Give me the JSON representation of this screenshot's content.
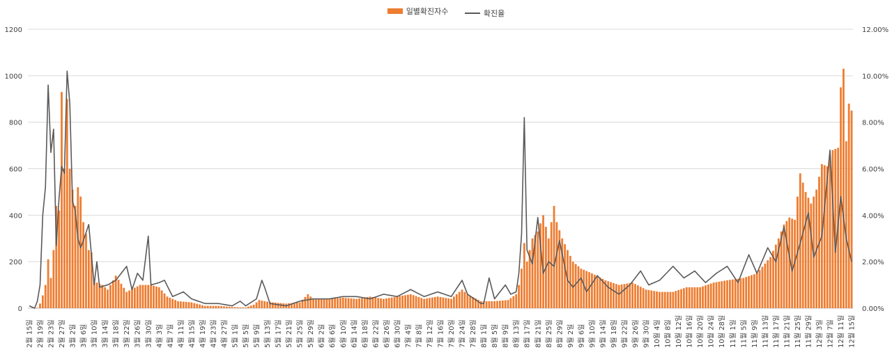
{
  "chart_data": {
    "type": "bar",
    "title": "",
    "legend": {
      "position": "top-center"
    },
    "grid": true,
    "colors": {
      "bar": "#ED7D31",
      "line": "#595959",
      "grid": "#D9D9D9",
      "axis_text": "#404040"
    },
    "series": [
      {
        "name": "일별확진자수",
        "type": "bar",
        "axis": "left"
      },
      {
        "name": "확진율",
        "type": "line",
        "axis": "right"
      }
    ],
    "ylim_left": [
      0,
      1200
    ],
    "ylim_right": [
      0,
      12
    ],
    "yticks_left": [
      "0",
      "200",
      "400",
      "600",
      "800",
      "1000",
      "1200"
    ],
    "yticks_right": [
      "0.00%",
      "2.00%",
      "4.00%",
      "6.00%",
      "8.00%",
      "10.00%",
      "12.00%"
    ],
    "x_start": "2020-02-15",
    "x_end": "2020-12-15",
    "x_tick_labels": [
      "2월 15일",
      "2월 19일",
      "2월 23일",
      "2월 27일",
      "3월 2일",
      "3월 6일",
      "3월 10일",
      "3월 14일",
      "3월 18일",
      "3월 22일",
      "3월 26일",
      "3월 30일",
      "4월 3일",
      "4월 7일",
      "4월 11일",
      "4월 15일",
      "4월 19일",
      "4월 23일",
      "4월 27일",
      "5월 1일",
      "5월 5일",
      "5월 9일",
      "5월 13일",
      "5월 17일",
      "5월 21일",
      "5월 25일",
      "5월 29일",
      "6월 2일",
      "6월 6일",
      "6월 10일",
      "6월 14일",
      "6월 18일",
      "6월 22일",
      "6월 26일",
      "6월 30일",
      "7월 4일",
      "7월 8일",
      "7월 12일",
      "7월 16일",
      "7월 20일",
      "7월 24일",
      "7월 28일",
      "8월 1일",
      "8월 5일",
      "8월 9일",
      "8월 13일",
      "8월 17일",
      "8월 21일",
      "8월 25일",
      "8월 29일",
      "9월 2일",
      "9월 6일",
      "9월 10일",
      "9월 14일",
      "9월 18일",
      "9월 22일",
      "9월 26일",
      "9월 30일",
      "10월 4일",
      "10월 8일",
      "10월 12일",
      "10월 16일",
      "10월 20일",
      "10월 24일",
      "10월 28일",
      "11월 1일",
      "11월 5일",
      "11월 9일",
      "11월 13일",
      "11월 17일",
      "11월 21일",
      "11월 25일",
      "11월 29일",
      "12월 3일",
      "12월 7일",
      "12월 11일",
      "12월 15일"
    ],
    "cases_keypoints": [
      [
        "2020-02-15",
        0
      ],
      [
        "2020-02-18",
        2
      ],
      [
        "2020-02-19",
        20
      ],
      [
        "2020-02-20",
        55
      ],
      [
        "2020-02-21",
        100
      ],
      [
        "2020-02-22",
        210
      ],
      [
        "2020-02-23",
        130
      ],
      [
        "2020-02-24",
        250
      ],
      [
        "2020-02-25",
        440
      ],
      [
        "2020-02-26",
        420
      ],
      [
        "2020-02-27",
        930
      ],
      [
        "2020-02-28",
        600
      ],
      [
        "2020-02-29",
        900
      ],
      [
        "2020-03-01",
        600
      ],
      [
        "2020-03-02",
        510
      ],
      [
        "2020-03-03",
        440
      ],
      [
        "2020-03-04",
        520
      ],
      [
        "2020-03-05",
        480
      ],
      [
        "2020-03-06",
        370
      ],
      [
        "2020-03-07",
        320
      ],
      [
        "2020-03-08",
        250
      ],
      [
        "2020-03-09",
        240
      ],
      [
        "2020-03-10",
        120
      ],
      [
        "2020-03-11",
        110
      ],
      [
        "2020-03-13",
        100
      ],
      [
        "2020-03-15",
        80
      ],
      [
        "2020-03-18",
        140
      ],
      [
        "2020-03-22",
        70
      ],
      [
        "2020-03-27",
        100
      ],
      [
        "2020-03-31",
        100
      ],
      [
        "2020-04-03",
        90
      ],
      [
        "2020-04-06",
        50
      ],
      [
        "2020-04-10",
        30
      ],
      [
        "2020-04-15",
        25
      ],
      [
        "2020-04-20",
        10
      ],
      [
        "2020-04-25",
        10
      ],
      [
        "2020-04-30",
        5
      ],
      [
        "2020-05-05",
        3
      ],
      [
        "2020-05-08",
        15
      ],
      [
        "2020-05-10",
        35
      ],
      [
        "2020-05-12",
        30
      ],
      [
        "2020-05-15",
        25
      ],
      [
        "2020-05-20",
        20
      ],
      [
        "2020-05-25",
        25
      ],
      [
        "2020-05-28",
        60
      ],
      [
        "2020-05-30",
        40
      ],
      [
        "2020-06-05",
        40
      ],
      [
        "2020-06-10",
        45
      ],
      [
        "2020-06-15",
        40
      ],
      [
        "2020-06-20",
        50
      ],
      [
        "2020-06-25",
        40
      ],
      [
        "2020-06-30",
        50
      ],
      [
        "2020-07-05",
        60
      ],
      [
        "2020-07-10",
        40
      ],
      [
        "2020-07-15",
        50
      ],
      [
        "2020-07-20",
        40
      ],
      [
        "2020-07-24",
        80
      ],
      [
        "2020-07-26",
        60
      ],
      [
        "2020-07-31",
        30
      ],
      [
        "2020-08-05",
        30
      ],
      [
        "2020-08-10",
        35
      ],
      [
        "2020-08-13",
        60
      ],
      [
        "2020-08-14",
        100
      ],
      [
        "2020-08-15",
        170
      ],
      [
        "2020-08-16",
        280
      ],
      [
        "2020-08-17",
        200
      ],
      [
        "2020-08-18",
        250
      ],
      [
        "2020-08-19",
        300
      ],
      [
        "2020-08-21",
        330
      ],
      [
        "2020-08-23",
        400
      ],
      [
        "2020-08-25",
        300
      ],
      [
        "2020-08-27",
        440
      ],
      [
        "2020-08-28",
        370
      ],
      [
        "2020-08-30",
        300
      ],
      [
        "2020-09-01",
        250
      ],
      [
        "2020-09-03",
        200
      ],
      [
        "2020-09-06",
        170
      ],
      [
        "2020-09-10",
        150
      ],
      [
        "2020-09-15",
        120
      ],
      [
        "2020-09-20",
        100
      ],
      [
        "2020-09-25",
        110
      ],
      [
        "2020-09-30",
        80
      ],
      [
        "2020-10-05",
        70
      ],
      [
        "2020-10-10",
        70
      ],
      [
        "2020-10-15",
        90
      ],
      [
        "2020-10-20",
        90
      ],
      [
        "2020-10-25",
        110
      ],
      [
        "2020-10-30",
        120
      ],
      [
        "2020-11-05",
        130
      ],
      [
        "2020-11-10",
        150
      ],
      [
        "2020-11-15",
        220
      ],
      [
        "2020-11-18",
        300
      ],
      [
        "2020-11-20",
        360
      ],
      [
        "2020-11-22",
        390
      ],
      [
        "2020-11-24",
        380
      ],
      [
        "2020-11-26",
        580
      ],
      [
        "2020-11-28",
        500
      ],
      [
        "2020-11-30",
        450
      ],
      [
        "2020-12-02",
        510
      ],
      [
        "2020-12-04",
        620
      ],
      [
        "2020-12-06",
        610
      ],
      [
        "2020-12-08",
        680
      ],
      [
        "2020-12-10",
        690
      ],
      [
        "2020-12-11",
        950
      ],
      [
        "2020-12-12",
        1030
      ],
      [
        "2020-12-13",
        718
      ],
      [
        "2020-12-14",
        880
      ],
      [
        "2020-12-15",
        850
      ]
    ],
    "rate_keypoints": [
      [
        "2020-02-15",
        0.1
      ],
      [
        "2020-02-17",
        0.0
      ],
      [
        "2020-02-18",
        0.3
      ],
      [
        "2020-02-19",
        1.0
      ],
      [
        "2020-02-20",
        4.0
      ],
      [
        "2020-02-21",
        5.2
      ],
      [
        "2020-02-22",
        9.6
      ],
      [
        "2020-02-23",
        6.7
      ],
      [
        "2020-02-24",
        7.7
      ],
      [
        "2020-02-25",
        2.7
      ],
      [
        "2020-02-26",
        4.7
      ],
      [
        "2020-02-27",
        6.1
      ],
      [
        "2020-02-28",
        5.8
      ],
      [
        "2020-02-29",
        10.2
      ],
      [
        "2020-03-01",
        8.8
      ],
      [
        "2020-03-02",
        4.6
      ],
      [
        "2020-03-03",
        4.2
      ],
      [
        "2020-03-04",
        3.0
      ],
      [
        "2020-03-05",
        2.6
      ],
      [
        "2020-03-06",
        2.9
      ],
      [
        "2020-03-08",
        3.6
      ],
      [
        "2020-03-10",
        1.0
      ],
      [
        "2020-03-11",
        2.0
      ],
      [
        "2020-03-12",
        0.9
      ],
      [
        "2020-03-15",
        1.0
      ],
      [
        "2020-03-18",
        1.2
      ],
      [
        "2020-03-22",
        1.8
      ],
      [
        "2020-03-24",
        0.8
      ],
      [
        "2020-03-26",
        1.5
      ],
      [
        "2020-03-28",
        1.2
      ],
      [
        "2020-03-30",
        3.1
      ],
      [
        "2020-03-31",
        1.0
      ],
      [
        "2020-04-03",
        1.1
      ],
      [
        "2020-04-05",
        1.2
      ],
      [
        "2020-04-08",
        0.5
      ],
      [
        "2020-04-12",
        0.7
      ],
      [
        "2020-04-15",
        0.4
      ],
      [
        "2020-04-20",
        0.2
      ],
      [
        "2020-04-25",
        0.2
      ],
      [
        "2020-04-30",
        0.1
      ],
      [
        "2020-05-03",
        0.3
      ],
      [
        "2020-05-05",
        0.1
      ],
      [
        "2020-05-09",
        0.4
      ],
      [
        "2020-05-11",
        1.2
      ],
      [
        "2020-05-12",
        0.9
      ],
      [
        "2020-05-14",
        0.2
      ],
      [
        "2020-05-20",
        0.1
      ],
      [
        "2020-05-25",
        0.3
      ],
      [
        "2020-05-30",
        0.4
      ],
      [
        "2020-06-05",
        0.4
      ],
      [
        "2020-06-10",
        0.5
      ],
      [
        "2020-06-15",
        0.5
      ],
      [
        "2020-06-20",
        0.4
      ],
      [
        "2020-06-25",
        0.6
      ],
      [
        "2020-06-30",
        0.5
      ],
      [
        "2020-07-05",
        0.8
      ],
      [
        "2020-07-10",
        0.5
      ],
      [
        "2020-07-15",
        0.7
      ],
      [
        "2020-07-20",
        0.5
      ],
      [
        "2020-07-24",
        1.2
      ],
      [
        "2020-07-26",
        0.6
      ],
      [
        "2020-07-31",
        0.2
      ],
      [
        "2020-08-01",
        0.2
      ],
      [
        "2020-08-03",
        1.3
      ],
      [
        "2020-08-05",
        0.4
      ],
      [
        "2020-08-09",
        1.0
      ],
      [
        "2020-08-11",
        0.6
      ],
      [
        "2020-08-13",
        0.7
      ],
      [
        "2020-08-14",
        1.5
      ],
      [
        "2020-08-15",
        3.2
      ],
      [
        "2020-08-16",
        8.2
      ],
      [
        "2020-08-17",
        2.5
      ],
      [
        "2020-08-19",
        1.9
      ],
      [
        "2020-08-21",
        3.9
      ],
      [
        "2020-08-23",
        1.5
      ],
      [
        "2020-08-25",
        2.0
      ],
      [
        "2020-08-27",
        1.8
      ],
      [
        "2020-08-29",
        2.9
      ],
      [
        "2020-09-01",
        1.2
      ],
      [
        "2020-09-03",
        0.9
      ],
      [
        "2020-09-06",
        1.3
      ],
      [
        "2020-09-08",
        0.7
      ],
      [
        "2020-09-12",
        1.4
      ],
      [
        "2020-09-16",
        0.9
      ],
      [
        "2020-09-20",
        0.6
      ],
      [
        "2020-09-24",
        1.0
      ],
      [
        "2020-09-28",
        1.6
      ],
      [
        "2020-10-01",
        1.0
      ],
      [
        "2020-10-05",
        1.2
      ],
      [
        "2020-10-10",
        1.8
      ],
      [
        "2020-10-14",
        1.3
      ],
      [
        "2020-10-18",
        1.6
      ],
      [
        "2020-10-22",
        1.1
      ],
      [
        "2020-10-26",
        1.5
      ],
      [
        "2020-10-30",
        1.8
      ],
      [
        "2020-11-03",
        1.1
      ],
      [
        "2020-11-07",
        2.3
      ],
      [
        "2020-11-10",
        1.5
      ],
      [
        "2020-11-14",
        2.6
      ],
      [
        "2020-11-17",
        2.0
      ],
      [
        "2020-11-20",
        3.5
      ],
      [
        "2020-11-23",
        1.6
      ],
      [
        "2020-11-26",
        2.8
      ],
      [
        "2020-11-29",
        4.1
      ],
      [
        "2020-12-01",
        2.2
      ],
      [
        "2020-12-04",
        3.1
      ],
      [
        "2020-12-07",
        6.8
      ],
      [
        "2020-12-09",
        2.4
      ],
      [
        "2020-12-11",
        4.8
      ],
      [
        "2020-12-13",
        3.0
      ],
      [
        "2020-12-15",
        2.0
      ]
    ]
  }
}
